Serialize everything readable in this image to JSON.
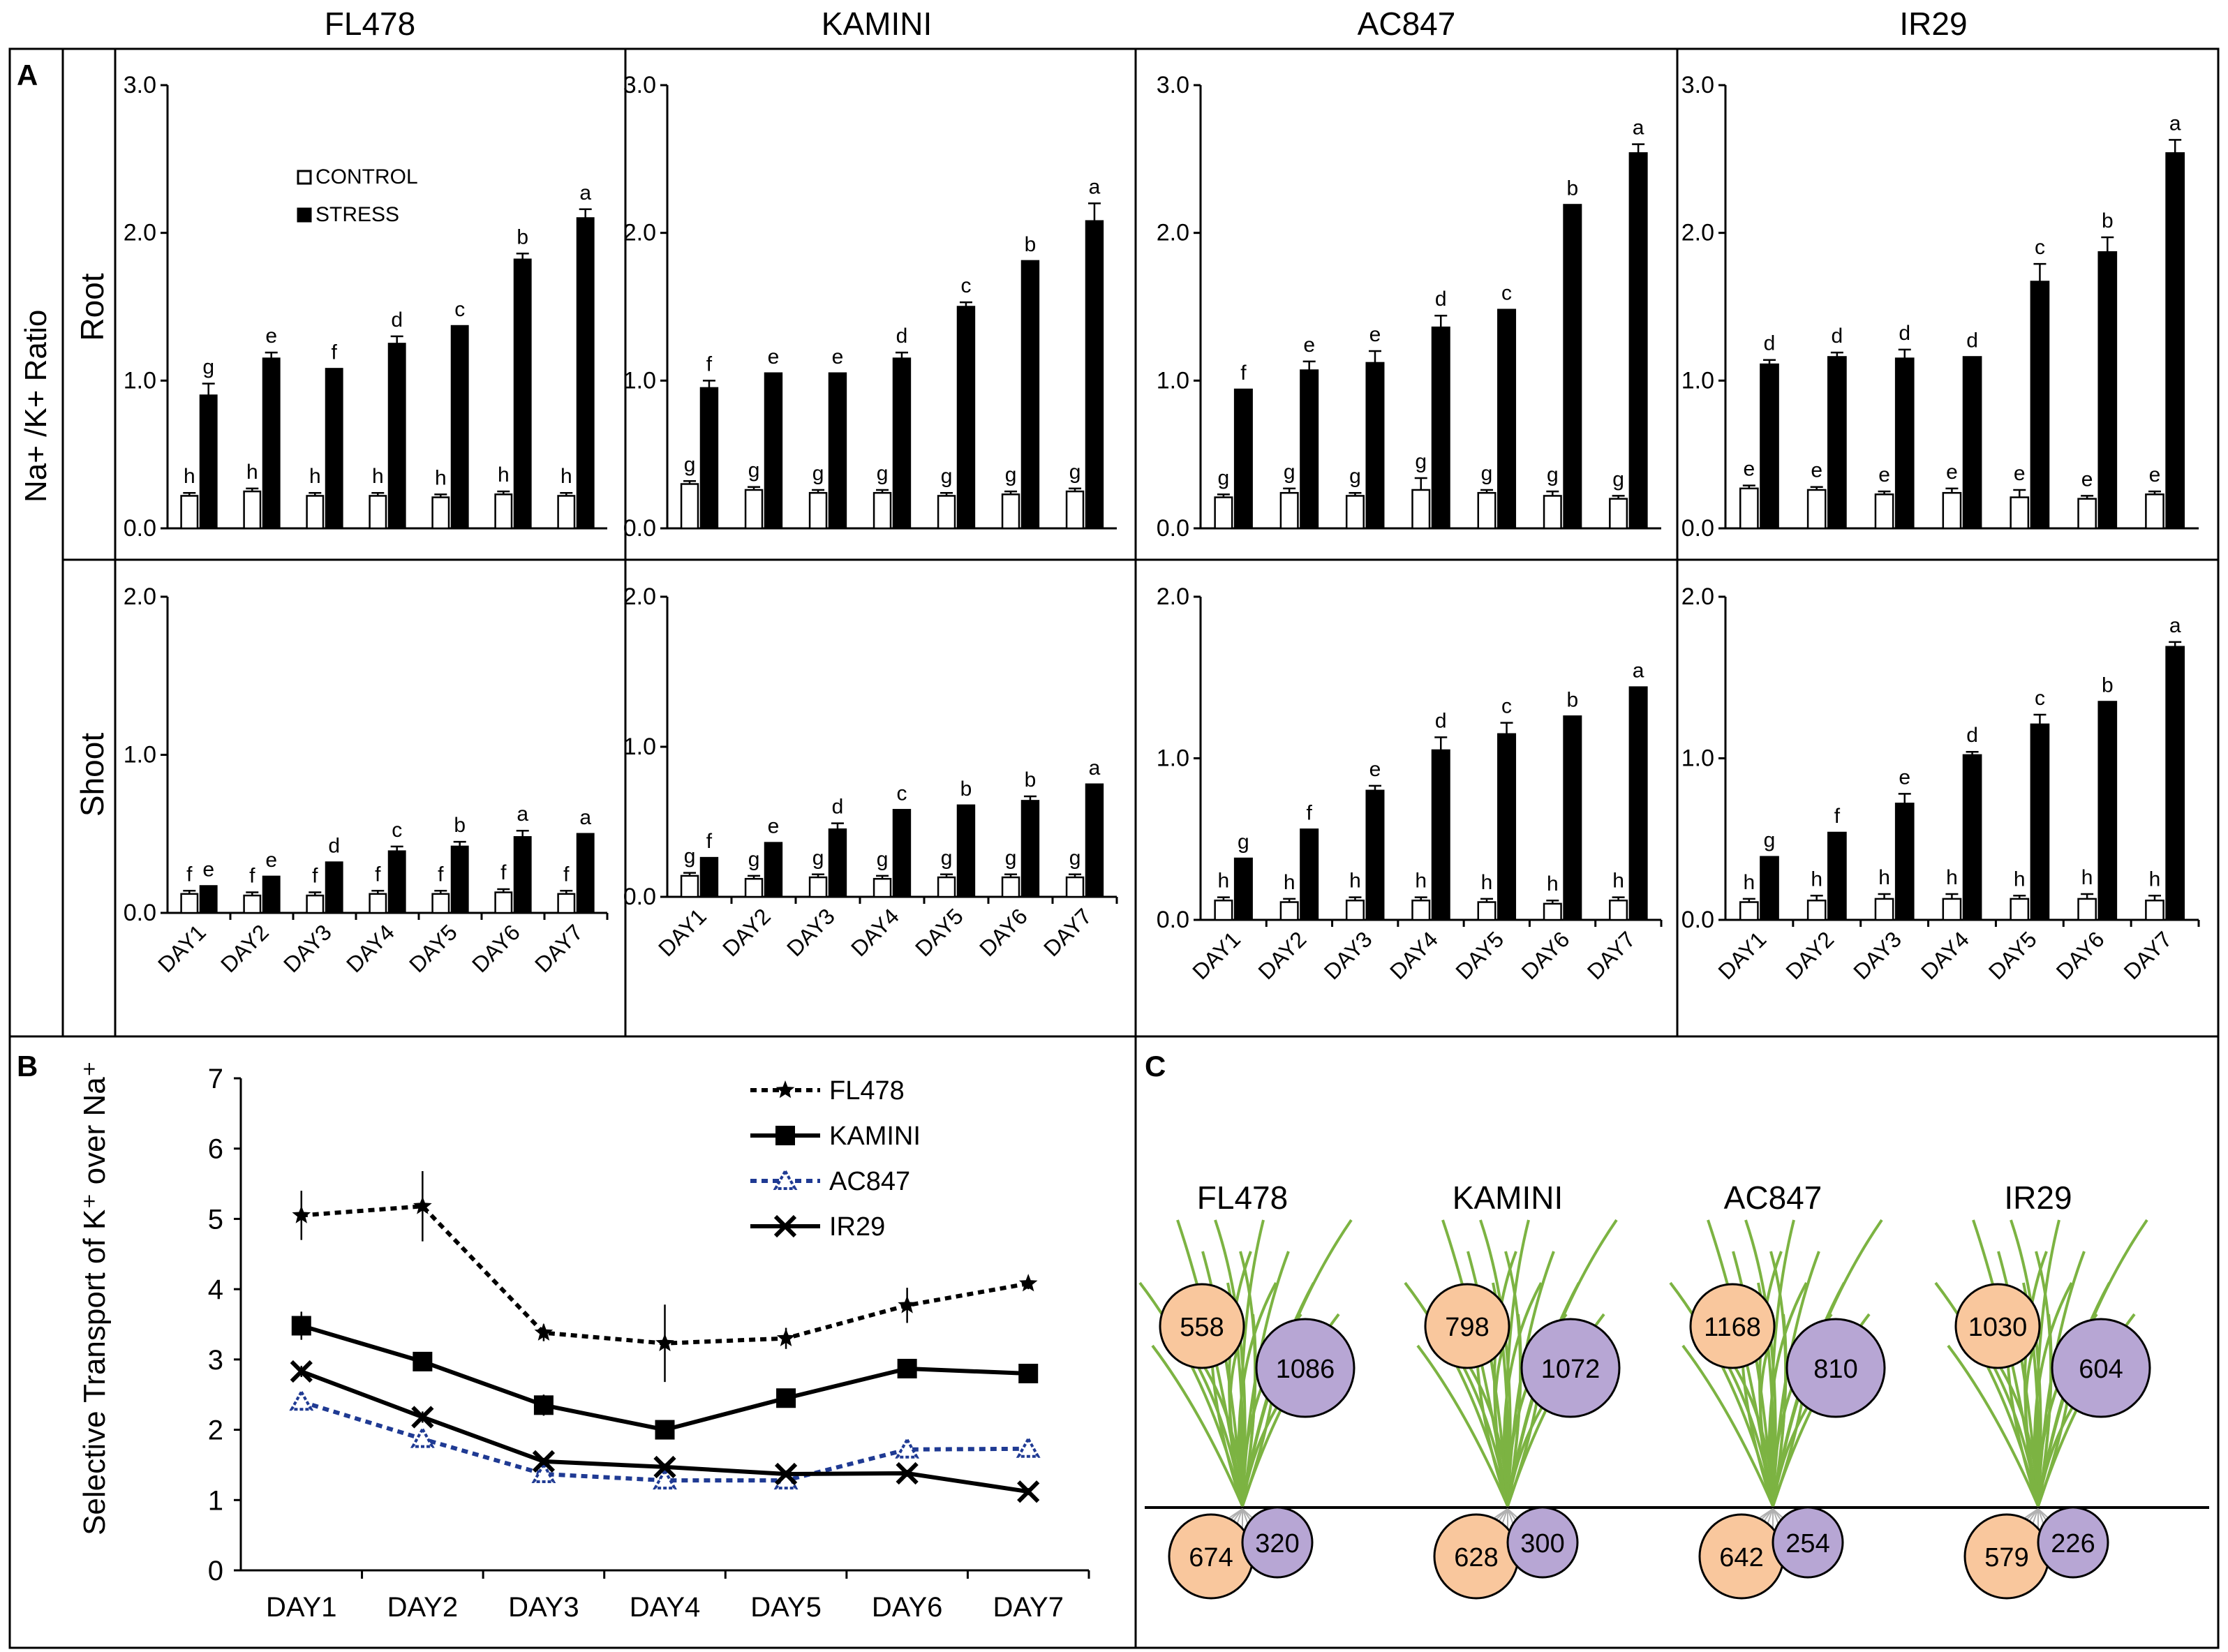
{
  "panel_letters": {
    "a": "A",
    "b": "B",
    "c": "C"
  },
  "panel_a": {
    "y_axis_title": "Na+ /K+ Ratio",
    "row_labels": {
      "root": "Root",
      "shoot": "Shoot"
    },
    "legend": {
      "control": "CONTROL",
      "stress": "STRESS"
    },
    "colors": {
      "control": "#ffffff",
      "stress": "#000000"
    }
  },
  "chart_data": [
    {
      "type": "bar",
      "panel": "A",
      "organ": "Root",
      "cultivar": "FL478",
      "title": "FL478",
      "categories": [
        "DAY1",
        "DAY2",
        "DAY3",
        "DAY4",
        "DAY5",
        "DAY6",
        "DAY7"
      ],
      "ylim": [
        0,
        3.0
      ],
      "yticks": [
        "0.0",
        "1.0",
        "2.0",
        "3.0"
      ],
      "series": [
        {
          "name": "CONTROL",
          "values": [
            0.22,
            0.25,
            0.22,
            0.22,
            0.21,
            0.23,
            0.22
          ],
          "errors": [
            0.02,
            0.02,
            0.02,
            0.02,
            0.02,
            0.02,
            0.02
          ],
          "letters": [
            "h",
            "h",
            "h",
            "h",
            "h",
            "h",
            "h"
          ]
        },
        {
          "name": "STRESS",
          "values": [
            0.9,
            1.15,
            1.08,
            1.25,
            1.37,
            1.82,
            2.1
          ],
          "errors": [
            0.08,
            0.04,
            0.0,
            0.05,
            0.0,
            0.04,
            0.06
          ],
          "letters": [
            "g",
            "e",
            "f",
            "d",
            "c",
            "b",
            "a"
          ]
        }
      ]
    },
    {
      "type": "bar",
      "panel": "A",
      "organ": "Root",
      "cultivar": "KAMINI",
      "title": "KAMINI",
      "categories": [
        "DAY1",
        "DAY2",
        "DAY3",
        "DAY4",
        "DAY5",
        "DAY6",
        "DAY7"
      ],
      "ylim": [
        0,
        3.0
      ],
      "yticks": [
        "0.0",
        "1.0",
        "2.0",
        "3.0"
      ],
      "series": [
        {
          "name": "CONTROL",
          "values": [
            0.3,
            0.26,
            0.24,
            0.24,
            0.22,
            0.23,
            0.25
          ],
          "errors": [
            0.02,
            0.02,
            0.02,
            0.02,
            0.02,
            0.02,
            0.02
          ],
          "letters": [
            "g",
            "g",
            "g",
            "g",
            "g",
            "g",
            "g"
          ]
        },
        {
          "name": "STRESS",
          "values": [
            0.95,
            1.05,
            1.05,
            1.15,
            1.5,
            1.81,
            2.08
          ],
          "errors": [
            0.05,
            0.0,
            0.0,
            0.04,
            0.03,
            0.0,
            0.12
          ],
          "letters": [
            "f",
            "e",
            "e",
            "d",
            "c",
            "b",
            "a"
          ]
        }
      ]
    },
    {
      "type": "bar",
      "panel": "A",
      "organ": "Root",
      "cultivar": "AC847",
      "title": "AC847",
      "categories": [
        "DAY1",
        "DAY2",
        "DAY3",
        "DAY4",
        "DAY5",
        "DAY6",
        "DAY7"
      ],
      "ylim": [
        0,
        3.0
      ],
      "yticks": [
        "0.0",
        "1.0",
        "2.0",
        "3.0"
      ],
      "series": [
        {
          "name": "CONTROL",
          "values": [
            0.21,
            0.24,
            0.22,
            0.26,
            0.24,
            0.22,
            0.2
          ],
          "errors": [
            0.02,
            0.03,
            0.02,
            0.08,
            0.02,
            0.03,
            0.02
          ],
          "letters": [
            "g",
            "g",
            "g",
            "g",
            "g",
            "g",
            "g"
          ]
        },
        {
          "name": "STRESS",
          "values": [
            0.94,
            1.07,
            1.12,
            1.36,
            1.48,
            2.19,
            2.54
          ],
          "errors": [
            0.0,
            0.06,
            0.08,
            0.08,
            0.0,
            0.0,
            0.06
          ],
          "letters": [
            "f",
            "e",
            "e",
            "d",
            "c",
            "b",
            "a"
          ]
        }
      ]
    },
    {
      "type": "bar",
      "panel": "A",
      "organ": "Root",
      "cultivar": "IR29",
      "title": "IR29",
      "categories": [
        "DAY1",
        "DAY2",
        "DAY3",
        "DAY4",
        "DAY5",
        "DAY6",
        "DAY7"
      ],
      "ylim": [
        0,
        3.0
      ],
      "yticks": [
        "0.0",
        "1.0",
        "2.0",
        "3.0"
      ],
      "series": [
        {
          "name": "CONTROL",
          "values": [
            0.27,
            0.26,
            0.23,
            0.24,
            0.21,
            0.2,
            0.23
          ],
          "errors": [
            0.02,
            0.02,
            0.02,
            0.03,
            0.05,
            0.02,
            0.02
          ],
          "letters": [
            "e",
            "e",
            "e",
            "e",
            "e",
            "e",
            "e"
          ]
        },
        {
          "name": "STRESS",
          "values": [
            1.11,
            1.16,
            1.15,
            1.16,
            1.67,
            1.87,
            2.54
          ],
          "errors": [
            0.03,
            0.03,
            0.06,
            0.0,
            0.12,
            0.1,
            0.09
          ],
          "letters": [
            "d",
            "d",
            "d",
            "d",
            "c",
            "b",
            "a"
          ]
        }
      ]
    },
    {
      "type": "bar",
      "panel": "A",
      "organ": "Shoot",
      "cultivar": "FL478",
      "title": "",
      "categories": [
        "DAY1",
        "DAY2",
        "DAY3",
        "DAY4",
        "DAY5",
        "DAY6",
        "DAY7"
      ],
      "ylim": [
        0,
        2.0
      ],
      "yticks": [
        "0.0",
        "1.0",
        "2.0"
      ],
      "series": [
        {
          "name": "CONTROL",
          "values": [
            0.12,
            0.11,
            0.11,
            0.12,
            0.12,
            0.13,
            0.12
          ],
          "errors": [
            0.02,
            0.02,
            0.02,
            0.02,
            0.02,
            0.02,
            0.02
          ],
          "letters": [
            "f",
            "f",
            "f",
            "f",
            "f",
            "f",
            "f"
          ]
        },
        {
          "name": "STRESS",
          "values": [
            0.17,
            0.23,
            0.32,
            0.39,
            0.42,
            0.48,
            0.5
          ],
          "errors": [
            0.0,
            0.0,
            0.0,
            0.03,
            0.03,
            0.04,
            0.0
          ],
          "letters": [
            "e",
            "e",
            "d",
            "c",
            "b",
            "a",
            "a"
          ]
        }
      ]
    },
    {
      "type": "bar",
      "panel": "A",
      "organ": "Shoot",
      "cultivar": "KAMINI",
      "title": "",
      "categories": [
        "DAY1",
        "DAY2",
        "DAY3",
        "DAY4",
        "DAY5",
        "DAY6",
        "DAY7"
      ],
      "ylim": [
        0,
        2.0
      ],
      "yticks": [
        "0.0",
        "1.0",
        "2.0"
      ],
      "series": [
        {
          "name": "CONTROL",
          "values": [
            0.14,
            0.12,
            0.13,
            0.12,
            0.13,
            0.13,
            0.13
          ],
          "errors": [
            0.02,
            0.02,
            0.02,
            0.02,
            0.02,
            0.02,
            0.02
          ],
          "letters": [
            "g",
            "g",
            "g",
            "g",
            "g",
            "g",
            "g"
          ]
        },
        {
          "name": "STRESS",
          "values": [
            0.26,
            0.36,
            0.45,
            0.58,
            0.61,
            0.64,
            0.75
          ],
          "errors": [
            0.0,
            0.0,
            0.04,
            0.0,
            0.0,
            0.03,
            0.0
          ],
          "letters": [
            "f",
            "e",
            "d",
            "c",
            "b",
            "b",
            "a"
          ]
        }
      ]
    },
    {
      "type": "bar",
      "panel": "A",
      "organ": "Shoot",
      "cultivar": "AC847",
      "title": "",
      "categories": [
        "DAY1",
        "DAY2",
        "DAY3",
        "DAY4",
        "DAY5",
        "DAY6",
        "DAY7"
      ],
      "ylim": [
        0,
        2.0
      ],
      "yticks": [
        "0.0",
        "1.0",
        "2.0"
      ],
      "series": [
        {
          "name": "CONTROL",
          "values": [
            0.12,
            0.11,
            0.12,
            0.12,
            0.11,
            0.1,
            0.12
          ],
          "errors": [
            0.02,
            0.02,
            0.02,
            0.02,
            0.02,
            0.02,
            0.02
          ],
          "letters": [
            "h",
            "h",
            "h",
            "h",
            "h",
            "h",
            "h"
          ]
        },
        {
          "name": "STRESS",
          "values": [
            0.38,
            0.56,
            0.8,
            1.05,
            1.15,
            1.26,
            1.44
          ],
          "errors": [
            0.0,
            0.0,
            0.03,
            0.08,
            0.07,
            0.0,
            0.0
          ],
          "letters": [
            "g",
            "f",
            "e",
            "d",
            "c",
            "b",
            "a"
          ]
        }
      ]
    },
    {
      "type": "bar",
      "panel": "A",
      "organ": "Shoot",
      "cultivar": "IR29",
      "title": "",
      "categories": [
        "DAY1",
        "DAY2",
        "DAY3",
        "DAY4",
        "DAY5",
        "DAY6",
        "DAY7"
      ],
      "ylim": [
        0,
        2.0
      ],
      "yticks": [
        "0.0",
        "1.0",
        "2.0"
      ],
      "series": [
        {
          "name": "CONTROL",
          "values": [
            0.11,
            0.12,
            0.13,
            0.13,
            0.13,
            0.13,
            0.12
          ],
          "errors": [
            0.02,
            0.03,
            0.03,
            0.03,
            0.02,
            0.03,
            0.03
          ],
          "letters": [
            "h",
            "h",
            "h",
            "h",
            "h",
            "h",
            "h"
          ]
        },
        {
          "name": "STRESS",
          "values": [
            0.39,
            0.54,
            0.72,
            1.02,
            1.21,
            1.35,
            1.69
          ],
          "errors": [
            0.0,
            0.0,
            0.06,
            0.02,
            0.06,
            0.0,
            0.03
          ],
          "letters": [
            "g",
            "f",
            "e",
            "d",
            "c",
            "b",
            "a"
          ]
        }
      ]
    },
    {
      "type": "line",
      "panel": "B",
      "ylabel": "Selective Transport of K⁺ over Na⁺",
      "categories": [
        "DAY1",
        "DAY2",
        "DAY3",
        "DAY4",
        "DAY5",
        "DAY6",
        "DAY7"
      ],
      "ylim": [
        0,
        7
      ],
      "yticks": [
        "0",
        "1",
        "2",
        "3",
        "4",
        "5",
        "6",
        "7"
      ],
      "series": [
        {
          "name": "FL478",
          "values": [
            5.05,
            5.18,
            3.38,
            3.23,
            3.3,
            3.77,
            4.08
          ],
          "errors": [
            0.35,
            0.5,
            0.12,
            0.55,
            0.15,
            0.25,
            0.08
          ],
          "style": "dotted",
          "marker": "star",
          "color": "#000000"
        },
        {
          "name": "KAMINI",
          "values": [
            3.48,
            2.97,
            2.35,
            2.0,
            2.45,
            2.87,
            2.8
          ],
          "errors": [
            0.2,
            0.1,
            0.15,
            0.1,
            0.1,
            0.1,
            0.05
          ],
          "style": "solid",
          "marker": "square",
          "color": "#000000"
        },
        {
          "name": "AC847",
          "values": [
            2.4,
            1.87,
            1.37,
            1.28,
            1.28,
            1.72,
            1.73
          ],
          "errors": [
            0.08,
            0.05,
            0.05,
            0.05,
            0.05,
            0.05,
            0.05
          ],
          "style": "dotted",
          "marker": "triangle",
          "color": "#1f3a93"
        },
        {
          "name": "IR29",
          "values": [
            2.83,
            2.18,
            1.55,
            1.47,
            1.37,
            1.38,
            1.12
          ],
          "errors": [
            0.08,
            0.08,
            0.05,
            0.05,
            0.05,
            0.05,
            0.05
          ],
          "style": "solid",
          "marker": "x",
          "color": "#000000"
        }
      ]
    }
  ],
  "panel_c": {
    "colors": {
      "orange": "#f9c79d",
      "purple": "#b7a6d4"
    },
    "plants": [
      {
        "name": "FL478",
        "shoot_orange": "558",
        "shoot_purple": "1086",
        "root_orange": "674",
        "root_purple": "320"
      },
      {
        "name": "KAMINI",
        "shoot_orange": "798",
        "shoot_purple": "1072",
        "root_orange": "628",
        "root_purple": "300"
      },
      {
        "name": "AC847",
        "shoot_orange": "1168",
        "shoot_purple": "810",
        "root_orange": "642",
        "root_purple": "254"
      },
      {
        "name": "IR29",
        "shoot_orange": "1030",
        "shoot_purple": "604",
        "root_orange": "579",
        "root_purple": "226"
      }
    ]
  }
}
